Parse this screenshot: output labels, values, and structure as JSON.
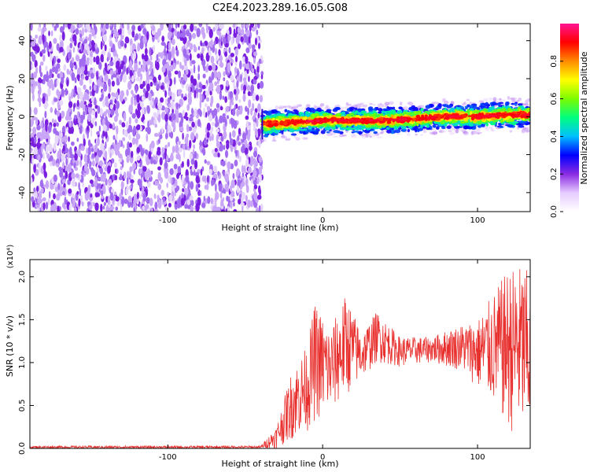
{
  "title": "C2E4.2023.289.16.05.G08",
  "chart_data": [
    {
      "type": "heatmap",
      "xlabel": "Height of straight line (km)",
      "ylabel": "Frequency (Hz)",
      "xlim": [
        -189,
        134
      ],
      "ylim": [
        -50,
        49
      ],
      "xticks": [
        -100,
        0,
        100
      ],
      "yticks": [
        -40,
        -20,
        0,
        20,
        40
      ],
      "colorbar": {
        "label": "Normalized spectral amplitude",
        "range": [
          0,
          1
        ],
        "ticks": [
          "0.0",
          "0.2",
          "0.4",
          "0.6",
          "0.8"
        ],
        "colormap": [
          "#ffffff",
          "#e6ccff",
          "#8a2be2",
          "#0000ff",
          "#00bfff",
          "#00ff7f",
          "#7cfc00",
          "#ffff00",
          "#ff8c00",
          "#ff0000",
          "#ff1493"
        ]
      },
      "noise_region": {
        "x_range": [
          -189,
          -39
        ],
        "y_range": [
          -50,
          49
        ],
        "amplitude": [
          0.05,
          0.3
        ]
      },
      "signal_band": {
        "x_range": [
          -39,
          134
        ],
        "center_freq": [
          {
            "x": -39,
            "y": -4
          },
          {
            "x": -20,
            "y": -3
          },
          {
            "x": 0,
            "y": -2
          },
          {
            "x": 20,
            "y": -2
          },
          {
            "x": 40,
            "y": -2
          },
          {
            "x": 60,
            "y": -1
          },
          {
            "x": 80,
            "y": 0
          },
          {
            "x": 100,
            "y": 0
          },
          {
            "x": 120,
            "y": 1
          },
          {
            "x": 134,
            "y": 1
          }
        ],
        "peak_amplitude": 0.95
      }
    },
    {
      "type": "line",
      "xlabel": "Height of straight line (km)",
      "ylabel": "SNR (10 * v/v)",
      "y_multiplier": "(x10⁴)",
      "xlim": [
        -189,
        134
      ],
      "ylim": [
        0,
        2.2
      ],
      "xticks": [
        -100,
        0,
        100
      ],
      "yticks": [
        "0.0",
        "0.5",
        "1.0",
        "1.5",
        "2.0"
      ],
      "color": "#e8312f",
      "envelope": [
        {
          "x": -189,
          "lo": 0.0,
          "hi": 0.03
        },
        {
          "x": -40,
          "lo": 0.0,
          "hi": 0.03
        },
        {
          "x": -30,
          "lo": 0.0,
          "hi": 0.25
        },
        {
          "x": -20,
          "lo": 0.1,
          "hi": 0.9
        },
        {
          "x": -10,
          "lo": 0.2,
          "hi": 1.2
        },
        {
          "x": -5,
          "lo": 0.3,
          "hi": 1.7
        },
        {
          "x": 5,
          "lo": 0.4,
          "hi": 1.4
        },
        {
          "x": 15,
          "lo": 0.6,
          "hi": 1.8
        },
        {
          "x": 25,
          "lo": 0.8,
          "hi": 1.35
        },
        {
          "x": 35,
          "lo": 1.0,
          "hi": 1.6
        },
        {
          "x": 50,
          "lo": 0.95,
          "hi": 1.3
        },
        {
          "x": 70,
          "lo": 1.0,
          "hi": 1.3
        },
        {
          "x": 90,
          "lo": 0.9,
          "hi": 1.45
        },
        {
          "x": 100,
          "lo": 0.7,
          "hi": 1.5
        },
        {
          "x": 110,
          "lo": 0.5,
          "hi": 1.8
        },
        {
          "x": 120,
          "lo": 0.2,
          "hi": 2.1
        },
        {
          "x": 130,
          "lo": 0.1,
          "hi": 2.15
        },
        {
          "x": 134,
          "lo": 0.1,
          "hi": 2.0
        }
      ]
    }
  ]
}
